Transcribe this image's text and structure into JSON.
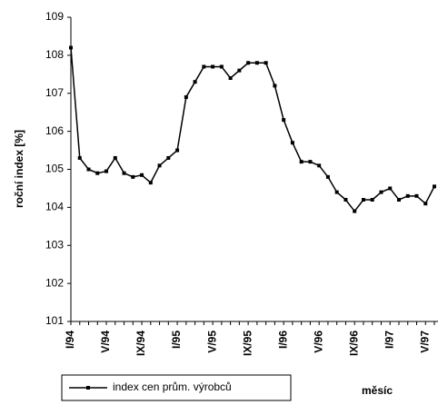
{
  "chart_data": {
    "type": "line",
    "y_label": "roční index [%]",
    "x_label": "měsíc",
    "categories": [
      "I/94",
      null,
      null,
      null,
      "V/94",
      null,
      null,
      null,
      "IX/94",
      null,
      null,
      null,
      "I/95",
      null,
      null,
      null,
      "V/95",
      null,
      null,
      null,
      "IX/95",
      null,
      null,
      null,
      "I/96",
      null,
      null,
      null,
      "V/96",
      null,
      null,
      null,
      "IX/96",
      null,
      null,
      null,
      "I/97",
      null,
      null,
      null,
      "V/97",
      null
    ],
    "series": [
      {
        "name": "index cen prům. výrobců",
        "color": "#000000",
        "values": [
          108.2,
          105.3,
          105.0,
          104.9,
          104.95,
          105.3,
          104.9,
          104.8,
          104.85,
          104.65,
          105.1,
          105.3,
          105.5,
          106.9,
          107.3,
          107.7,
          107.7,
          107.7,
          107.4,
          107.6,
          107.8,
          107.8,
          107.8,
          107.2,
          106.3,
          105.7,
          105.2,
          105.2,
          105.1,
          104.8,
          104.4,
          104.2,
          103.9,
          104.2,
          104.2,
          104.4,
          104.5,
          104.2,
          104.3,
          104.3,
          104.1,
          104.55
        ]
      }
    ],
    "ylim": [
      101,
      109
    ],
    "yticks": [
      101,
      102,
      103,
      104,
      105,
      106,
      107,
      108,
      109
    ],
    "grid": false,
    "legend": "bottom-left"
  }
}
